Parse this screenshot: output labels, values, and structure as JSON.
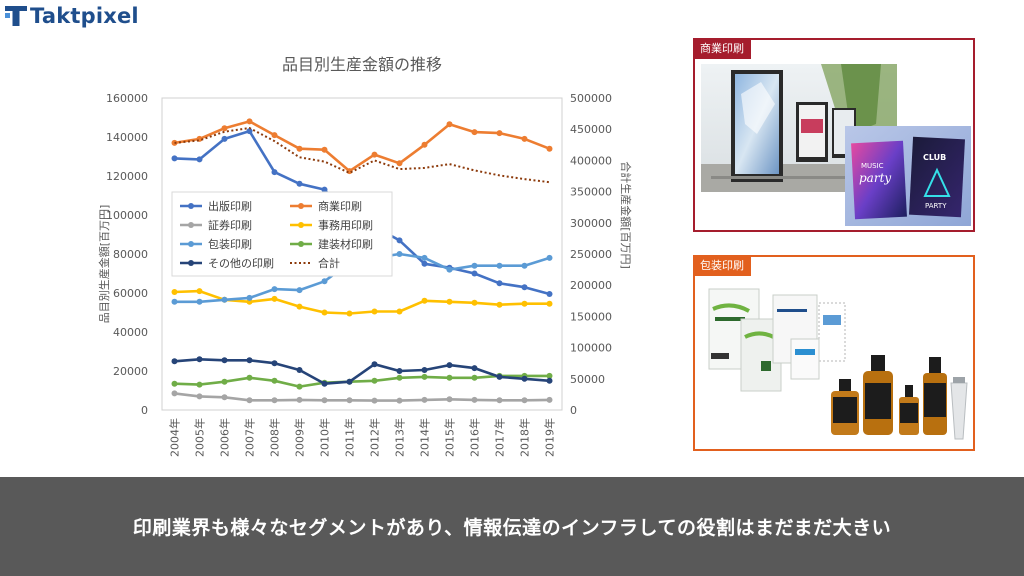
{
  "brand": {
    "name": "Taktpixel"
  },
  "footer": {
    "message": "印刷業界も様々なセグメントがあり、情報伝達のインフラしての役割はまだまだ大きい"
  },
  "panels": {
    "commercial": {
      "label": "商業印刷"
    },
    "packaging": {
      "label": "包装印刷"
    }
  },
  "colors": {
    "panel_commercial": "#a51d2d",
    "panel_packaging": "#e2601e",
    "footer_bg": "#595959"
  },
  "chart_data": {
    "type": "line",
    "title": "品目別生産金額の推移",
    "ylabel": "品目別生産金額[百万円]",
    "y2label": "合計生産金額[百万円]",
    "categories": [
      "2004年",
      "2005年",
      "2006年",
      "2007年",
      "2008年",
      "2009年",
      "2010年",
      "2011年",
      "2012年",
      "2013年",
      "2014年",
      "2015年",
      "2016年",
      "2017年",
      "2018年",
      "2019年"
    ],
    "ylim": [
      0,
      160000
    ],
    "y_ticks": [
      "0",
      "20000",
      "40000",
      "60000",
      "80000",
      "100000",
      "120000",
      "140000",
      "160000"
    ],
    "y2lim": [
      0,
      500000
    ],
    "y2_ticks": [
      "0",
      "50000",
      "100000",
      "150000",
      "200000",
      "250000",
      "300000",
      "350000",
      "400000",
      "450000",
      "500000"
    ],
    "legend_position": "inside-left",
    "grid": false,
    "series": [
      {
        "name": "出版印刷",
        "color": "#4472c4",
        "axis": "left",
        "style": "solid",
        "values": [
          129000,
          128500,
          139000,
          143000,
          122000,
          116000,
          113000,
          98000,
          94000,
          87000,
          75000,
          73000,
          70000,
          65000,
          63000,
          59500
        ]
      },
      {
        "name": "商業印刷",
        "color": "#ed7d31",
        "axis": "left",
        "style": "solid",
        "values": [
          137000,
          139000,
          144500,
          148000,
          141000,
          134000,
          133500,
          122500,
          131000,
          126500,
          136000,
          146500,
          142500,
          142000,
          139000,
          134000
        ]
      },
      {
        "name": "証券印刷",
        "color": "#a5a5a5",
        "axis": "left",
        "style": "solid",
        "values": [
          8500,
          7000,
          6500,
          5000,
          5000,
          5200,
          5000,
          5000,
          4800,
          4800,
          5200,
          5500,
          5200,
          5000,
          5000,
          5200
        ]
      },
      {
        "name": "事務用印刷",
        "color": "#ffc000",
        "axis": "left",
        "style": "solid",
        "values": [
          60500,
          61000,
          56500,
          55500,
          57000,
          53000,
          50000,
          49500,
          50500,
          50500,
          56000,
          55500,
          55000,
          54000,
          54500,
          54500
        ]
      },
      {
        "name": "包装印刷",
        "color": "#5b9bd5",
        "axis": "left",
        "style": "solid",
        "values": [
          55500,
          55500,
          56500,
          57500,
          62000,
          61500,
          66000,
          75500,
          78000,
          80000,
          78000,
          72000,
          74000,
          74000,
          74000,
          78000
        ]
      },
      {
        "name": "建装材印刷",
        "color": "#70ad47",
        "axis": "left",
        "style": "solid",
        "values": [
          13500,
          13000,
          14500,
          16500,
          15000,
          12000,
          14000,
          14500,
          15000,
          16500,
          17000,
          16500,
          16500,
          17500,
          17500,
          17500
        ]
      },
      {
        "name": "その他の印刷",
        "color": "#264478",
        "axis": "left",
        "style": "solid",
        "values": [
          25000,
          26000,
          25500,
          25500,
          24000,
          20500,
          13500,
          14500,
          23500,
          20000,
          20500,
          23000,
          21500,
          17000,
          16000,
          15000
        ]
      },
      {
        "name": "合計",
        "color": "#8c3a0b",
        "axis": "right",
        "style": "dotted",
        "values": [
          428000,
          432000,
          446000,
          452000,
          431000,
          405000,
          398000,
          380000,
          400000,
          386000,
          388000,
          394000,
          384000,
          376000,
          370000,
          365000
        ]
      }
    ]
  }
}
